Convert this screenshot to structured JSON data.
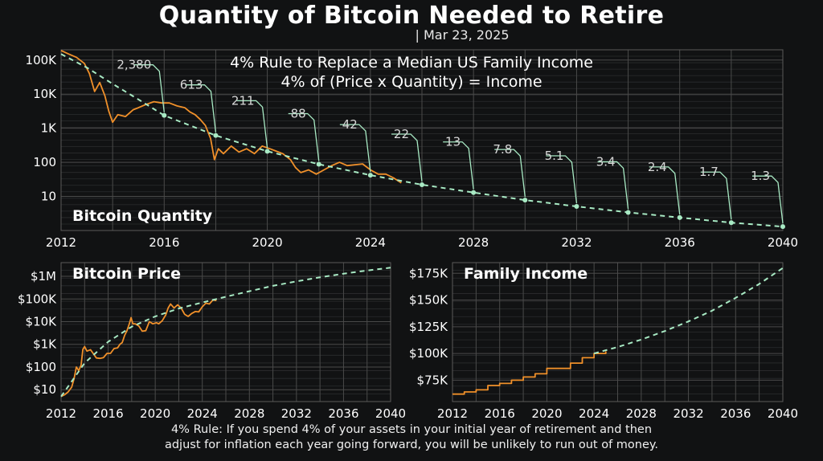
{
  "header": {
    "title": "Quantity of Bitcoin Needed to Retire",
    "date": "| Mar 23, 2025"
  },
  "footnote": {
    "line1": "4% Rule: If you spend 4% of your assets in your initial year of retirement and then",
    "line2": "adjust for inflation each year going forward, you will be unlikely to run out of money."
  },
  "colors": {
    "background": "#111213",
    "grid": "#4a4a4a",
    "actual": "#f0902a",
    "projection": "#a8eac4",
    "text": "#ffffff"
  },
  "chart_data": [
    {
      "type": "line",
      "title": "4% Rule to Replace a Median US Family Income",
      "subtitle": "4% of (Price x Quantity) = Income",
      "inner_label": "Bitcoin Quantity",
      "y_scale": "log",
      "xlim": [
        2012,
        2040
      ],
      "ylim": [
        1,
        200000
      ],
      "x_ticks": [
        2012,
        2016,
        2020,
        2024,
        2028,
        2032,
        2036,
        2040
      ],
      "y_ticks": [
        {
          "value": 10,
          "label": "10"
        },
        {
          "value": 100,
          "label": "100"
        },
        {
          "value": 1000,
          "label": "1K"
        },
        {
          "value": 10000,
          "label": "10K"
        },
        {
          "value": 100000,
          "label": "100K"
        }
      ],
      "grid": true,
      "series": [
        {
          "style": "actual",
          "x": [
            2012.0,
            2012.3,
            2012.6,
            2012.9,
            2013.1,
            2013.3,
            2013.5,
            2013.7,
            2013.85,
            2014.0,
            2014.2,
            2014.5,
            2014.8,
            2015.0,
            2015.3,
            2015.6,
            2015.9,
            2016.2,
            2016.5,
            2016.8,
            2017.0,
            2017.2,
            2017.4,
            2017.6,
            2017.8,
            2017.95,
            2018.1,
            2018.3,
            2018.6,
            2018.9,
            2019.2,
            2019.5,
            2019.8,
            2020.1,
            2020.3,
            2020.6,
            2020.9,
            2021.1,
            2021.3,
            2021.6,
            2021.9,
            2022.2,
            2022.5,
            2022.8,
            2023.1,
            2023.4,
            2023.7,
            2024.0,
            2024.3,
            2024.6,
            2024.9,
            2025.2
          ],
          "y": [
            190000,
            150000,
            120000,
            80000,
            40000,
            12000,
            22000,
            9000,
            3200,
            1500,
            2500,
            2200,
            3500,
            4000,
            5000,
            6000,
            5500,
            5500,
            4500,
            4000,
            3000,
            2500,
            1800,
            1200,
            500,
            120,
            250,
            180,
            300,
            200,
            250,
            180,
            300,
            250,
            220,
            180,
            120,
            70,
            50,
            60,
            45,
            60,
            80,
            100,
            80,
            85,
            90,
            60,
            45,
            45,
            35,
            25
          ]
        },
        {
          "style": "projection",
          "x": [
            2012.0,
            2013.0,
            2014.0,
            2015.0,
            2016.0,
            2018.0,
            2020.0,
            2022.0,
            2024.0,
            2026.0,
            2028.0,
            2030.0,
            2032.0,
            2034.0,
            2036.0,
            2038.0,
            2040.0
          ],
          "y": [
            150000,
            60000,
            20000,
            7000,
            2380,
            613,
            211,
            88,
            42,
            22,
            13,
            7.8,
            5.1,
            3.4,
            2.4,
            1.7,
            1.3
          ]
        }
      ],
      "annotations": [
        {
          "x": 2016,
          "y": 2380,
          "label": "2,380"
        },
        {
          "x": 2018,
          "y": 613,
          "label": "613"
        },
        {
          "x": 2020,
          "y": 211,
          "label": "211"
        },
        {
          "x": 2022,
          "y": 88,
          "label": "88"
        },
        {
          "x": 2024,
          "y": 42,
          "label": "42"
        },
        {
          "x": 2026,
          "y": 22,
          "label": "22"
        },
        {
          "x": 2028,
          "y": 13,
          "label": "13"
        },
        {
          "x": 2030,
          "y": 7.8,
          "label": "7.8"
        },
        {
          "x": 2032,
          "y": 5.1,
          "label": "5.1"
        },
        {
          "x": 2034,
          "y": 3.4,
          "label": "3.4"
        },
        {
          "x": 2036,
          "y": 2.4,
          "label": "2.4"
        },
        {
          "x": 2038,
          "y": 1.7,
          "label": "1.7"
        },
        {
          "x": 2040,
          "y": 1.3,
          "label": "1.3"
        }
      ]
    },
    {
      "type": "line",
      "inner_label": "Bitcoin Price",
      "y_scale": "log",
      "xlim": [
        2012,
        2040
      ],
      "ylim": [
        3,
        4000000
      ],
      "x_ticks": [
        2012,
        2016,
        2020,
        2024,
        2028,
        2032,
        2036,
        2040
      ],
      "y_ticks": [
        {
          "value": 10,
          "label": "$10"
        },
        {
          "value": 100,
          "label": "$100"
        },
        {
          "value": 1000,
          "label": "$1K"
        },
        {
          "value": 10000,
          "label": "$10K"
        },
        {
          "value": 100000,
          "label": "$100K"
        },
        {
          "value": 1000000,
          "label": "$1M"
        }
      ],
      "grid": true,
      "series": [
        {
          "style": "actual",
          "x": [
            2012.0,
            2012.3,
            2012.6,
            2012.9,
            2013.1,
            2013.3,
            2013.5,
            2013.7,
            2013.85,
            2014.0,
            2014.2,
            2014.5,
            2014.8,
            2015.0,
            2015.3,
            2015.6,
            2015.9,
            2016.2,
            2016.5,
            2016.8,
            2017.0,
            2017.2,
            2017.4,
            2017.6,
            2017.8,
            2017.95,
            2018.1,
            2018.3,
            2018.6,
            2018.9,
            2019.2,
            2019.5,
            2019.8,
            2020.1,
            2020.3,
            2020.6,
            2020.9,
            2021.1,
            2021.3,
            2021.6,
            2021.9,
            2022.2,
            2022.5,
            2022.8,
            2023.1,
            2023.4,
            2023.7,
            2024.0,
            2024.3,
            2024.6,
            2024.9,
            2025.2
          ],
          "y": [
            5,
            6,
            8,
            13,
            30,
            100,
            70,
            120,
            600,
            800,
            500,
            580,
            350,
            250,
            240,
            260,
            400,
            400,
            650,
            700,
            1000,
            1200,
            2500,
            4000,
            8000,
            15000,
            8000,
            8000,
            6500,
            3800,
            4000,
            10000,
            8000,
            9000,
            8000,
            11000,
            20000,
            40000,
            60000,
            40000,
            55000,
            40000,
            21000,
            17000,
            23000,
            28000,
            27000,
            45000,
            65000,
            60000,
            90000,
            85000
          ]
        },
        {
          "style": "projection",
          "x": [
            2012,
            2014,
            2016,
            2018,
            2020,
            2022,
            2024,
            2026,
            2028,
            2030,
            2032,
            2034,
            2036,
            2038,
            2040
          ],
          "y": [
            5,
            150,
            1300,
            6000,
            17000,
            38000,
            70000,
            125000,
            220000,
            380000,
            600000,
            900000,
            1300000,
            1800000,
            2400000
          ]
        }
      ]
    },
    {
      "type": "line",
      "inner_label": "Family Income",
      "y_scale": "linear",
      "xlim": [
        2012,
        2040
      ],
      "ylim": [
        55000,
        185000
      ],
      "x_ticks": [
        2012,
        2016,
        2020,
        2024,
        2028,
        2032,
        2036,
        2040
      ],
      "y_ticks": [
        {
          "value": 75000,
          "label": "$75K"
        },
        {
          "value": 100000,
          "label": "$100K"
        },
        {
          "value": 125000,
          "label": "$125K"
        },
        {
          "value": 150000,
          "label": "$150K"
        },
        {
          "value": 175000,
          "label": "$175K"
        }
      ],
      "grid": true,
      "series": [
        {
          "style": "actual",
          "step": true,
          "x": [
            2012,
            2013,
            2014,
            2015,
            2016,
            2017,
            2018,
            2019,
            2020,
            2021,
            2022,
            2023,
            2024,
            2025
          ],
          "y": [
            62000,
            64000,
            66000,
            70000,
            72000,
            75000,
            78000,
            81000,
            86000,
            86000,
            91000,
            96000,
            100000,
            102000
          ]
        },
        {
          "style": "projection",
          "x": [
            2024,
            2026,
            2028,
            2030,
            2032,
            2034,
            2036,
            2038,
            2040
          ],
          "y": [
            100000,
            106000,
            113000,
            121000,
            130000,
            140000,
            152000,
            165000,
            180000
          ]
        }
      ]
    }
  ]
}
